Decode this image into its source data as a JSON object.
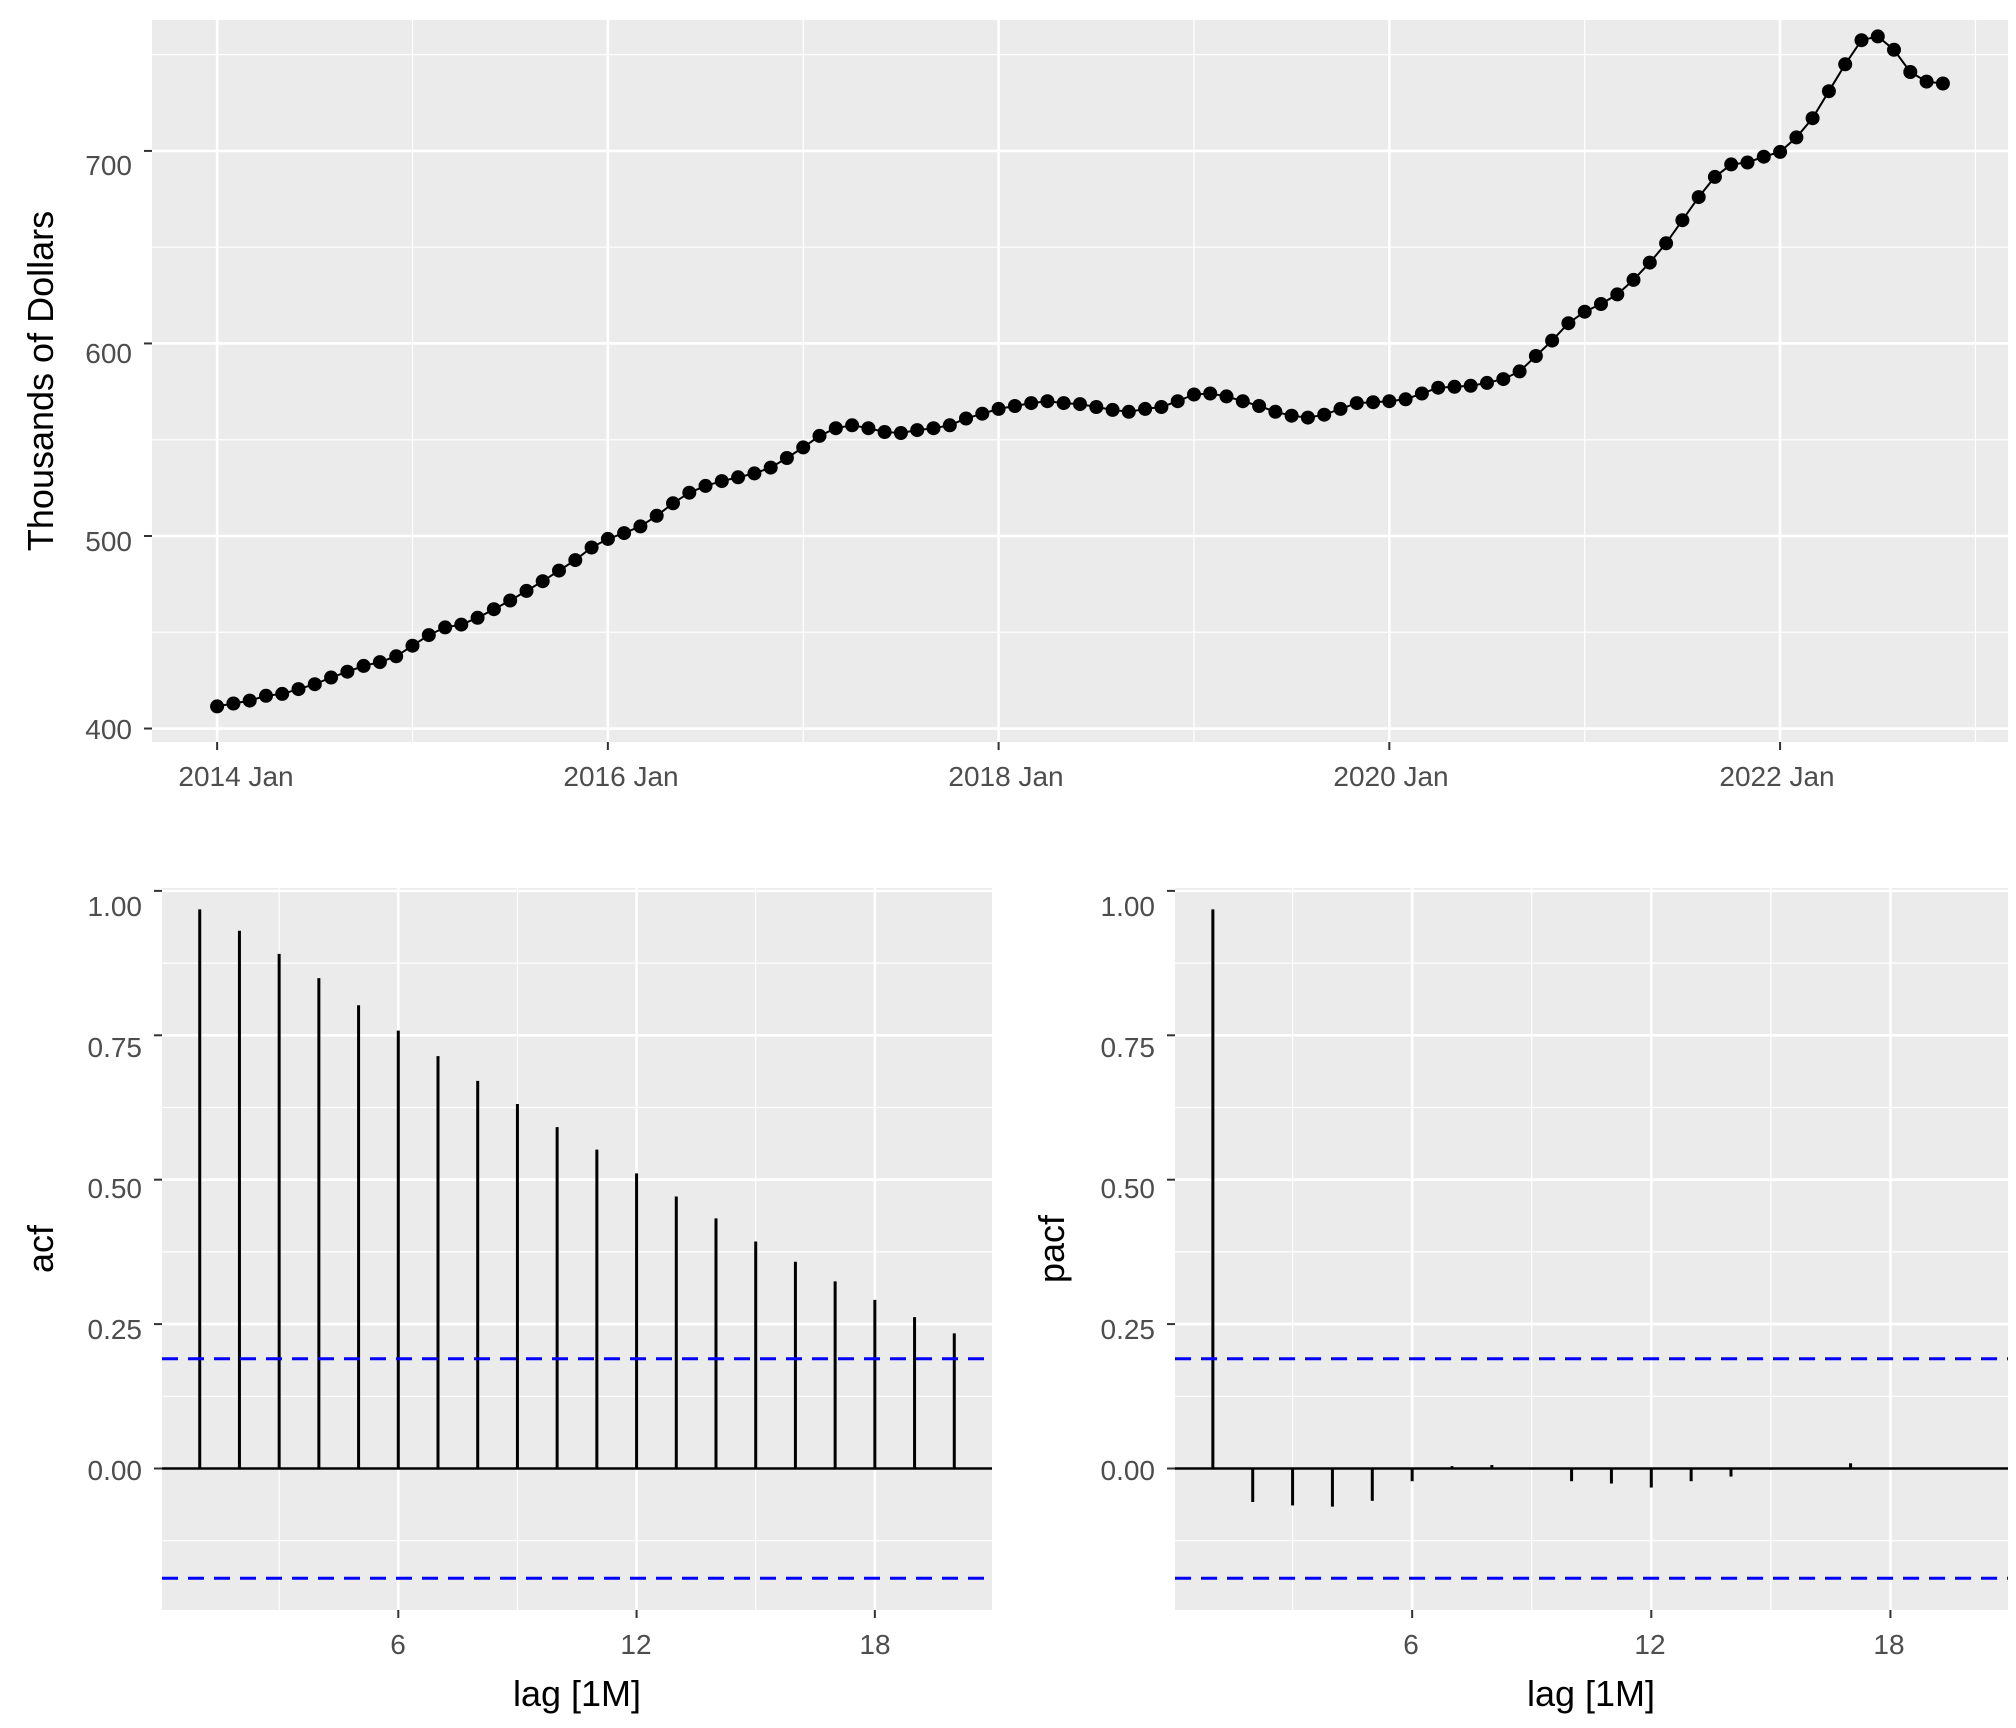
{
  "chart_data": [
    {
      "type": "line",
      "title": "",
      "xlabel": "",
      "ylabel": "Thousands of Dollars",
      "ylim": [
        393,
        768
      ],
      "xlim": [
        "2013-09",
        "2023-03"
      ],
      "x_tick_labels": [
        "2014 Jan",
        "2016 Jan",
        "2018 Jan",
        "2020 Jan",
        "2022 Jan"
      ],
      "y_tick_labels": [
        "400",
        "500",
        "600",
        "700"
      ],
      "grid": true,
      "markers": true,
      "color": "#000000",
      "x": [
        "2014-01",
        "2014-02",
        "2014-03",
        "2014-04",
        "2014-05",
        "2014-06",
        "2014-07",
        "2014-08",
        "2014-09",
        "2014-10",
        "2014-11",
        "2014-12",
        "2015-01",
        "2015-02",
        "2015-03",
        "2015-04",
        "2015-05",
        "2015-06",
        "2015-07",
        "2015-08",
        "2015-09",
        "2015-10",
        "2015-11",
        "2015-12",
        "2016-01",
        "2016-02",
        "2016-03",
        "2016-04",
        "2016-05",
        "2016-06",
        "2016-07",
        "2016-08",
        "2016-09",
        "2016-10",
        "2016-11",
        "2016-12",
        "2017-01",
        "2017-02",
        "2017-03",
        "2017-04",
        "2017-05",
        "2017-06",
        "2017-07",
        "2017-08",
        "2017-09",
        "2017-10",
        "2017-11",
        "2017-12",
        "2018-01",
        "2018-02",
        "2018-03",
        "2018-04",
        "2018-05",
        "2018-06",
        "2018-07",
        "2018-08",
        "2018-09",
        "2018-10",
        "2018-11",
        "2018-12",
        "2019-01",
        "2019-02",
        "2019-03",
        "2019-04",
        "2019-05",
        "2019-06",
        "2019-07",
        "2019-08",
        "2019-09",
        "2019-10",
        "2019-11",
        "2019-12",
        "2020-01",
        "2020-02",
        "2020-03",
        "2020-04",
        "2020-05",
        "2020-06",
        "2020-07",
        "2020-08",
        "2020-09",
        "2020-10",
        "2020-11",
        "2020-12",
        "2021-01",
        "2021-02",
        "2021-03",
        "2021-04",
        "2021-05",
        "2021-06",
        "2021-07",
        "2021-08",
        "2021-09",
        "2021-10",
        "2021-11",
        "2021-12",
        "2022-01",
        "2022-02",
        "2022-03",
        "2022-04",
        "2022-05",
        "2022-06",
        "2022-07",
        "2022-08",
        "2022-09",
        "2022-10",
        "2022-11"
      ],
      "values": [
        411.5,
        413,
        414.5,
        417,
        418,
        420.5,
        423,
        426.5,
        429.5,
        432.5,
        434.5,
        437.5,
        443,
        448.5,
        452.5,
        454,
        457.5,
        462,
        466.5,
        471.5,
        476.5,
        482,
        487.5,
        494,
        498.5,
        501.5,
        505,
        510.5,
        517,
        522.5,
        526,
        528.5,
        530.5,
        532.5,
        535.5,
        540.5,
        546,
        552,
        556,
        557.5,
        556,
        554,
        553.5,
        555,
        556,
        557.5,
        561,
        563.5,
        566,
        567.5,
        569,
        570,
        569,
        568.5,
        567,
        565.5,
        564.5,
        566,
        567,
        570,
        573.5,
        574,
        572.5,
        570,
        567.5,
        564.5,
        562.5,
        561.5,
        563,
        566,
        569,
        569.5,
        570,
        571,
        574,
        577,
        577.5,
        578,
        579.5,
        581.5,
        585.5,
        593.5,
        601.5,
        610.5,
        616.5,
        620.5,
        625.5,
        633,
        642,
        652,
        664,
        676,
        686.5,
        693,
        694,
        697,
        699.5,
        707,
        717,
        731,
        745,
        757.5,
        759.5,
        752.5,
        741,
        736,
        735
      ]
    },
    {
      "type": "bar",
      "title": "",
      "xlabel": "lag [1M]",
      "ylabel": "acf",
      "ylim": [
        -0.245,
        1.005
      ],
      "x_tick_labels": [
        "6",
        "12",
        "18"
      ],
      "y_tick_labels": [
        "0.00",
        "0.25",
        "0.50",
        "0.75",
        "1.00"
      ],
      "grid": true,
      "lags": [
        1,
        2,
        3,
        4,
        5,
        6,
        7,
        8,
        9,
        10,
        11,
        12,
        13,
        14,
        15,
        16,
        17,
        18,
        19,
        20
      ],
      "values": [
        0.968,
        0.931,
        0.891,
        0.849,
        0.802,
        0.758,
        0.714,
        0.671,
        0.631,
        0.591,
        0.552,
        0.511,
        0.471,
        0.433,
        0.393,
        0.358,
        0.324,
        0.292,
        0.262,
        0.234
      ],
      "confidence_bounds": [
        0.19,
        -0.19
      ],
      "bar_color": "#000000",
      "bound_color": "#0000ff"
    },
    {
      "type": "bar",
      "title": "",
      "xlabel": "lag [1M]",
      "ylabel": "pacf",
      "ylim": [
        -0.245,
        1.005
      ],
      "x_tick_labels": [
        "6",
        "12",
        "18"
      ],
      "y_tick_labels": [
        "0.00",
        "0.25",
        "0.50",
        "0.75",
        "1.00"
      ],
      "grid": true,
      "lags": [
        1,
        2,
        3,
        4,
        5,
        6,
        7,
        8,
        9,
        10,
        11,
        12,
        13,
        14,
        15,
        16,
        17,
        18,
        19,
        20
      ],
      "values": [
        0.968,
        -0.058,
        -0.064,
        -0.066,
        -0.056,
        -0.022,
        0.004,
        0.006,
        -0.001,
        -0.022,
        -0.026,
        -0.033,
        -0.022,
        -0.014,
        -0.002,
        0.001,
        0.009,
        0.001,
        0.001,
        0.0
      ],
      "confidence_bounds": [
        0.19,
        -0.19
      ],
      "bar_color": "#000000",
      "bound_color": "#0000ff"
    }
  ]
}
